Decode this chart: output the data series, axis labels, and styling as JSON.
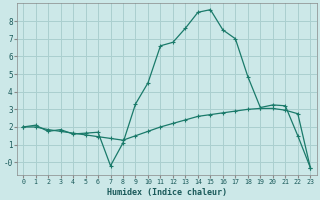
{
  "xlabel": "Humidex (Indice chaleur)",
  "bg_color": "#cce8e8",
  "grid_color": "#aacfcf",
  "line_color": "#1a7a6a",
  "x_ticks": [
    0,
    1,
    2,
    3,
    4,
    5,
    6,
    7,
    8,
    9,
    10,
    11,
    12,
    13,
    14,
    15,
    16,
    17,
    18,
    19,
    20,
    21,
    22,
    23
  ],
  "y_ticks": [
    0,
    1,
    2,
    3,
    4,
    5,
    6,
    7,
    8
  ],
  "ylim": [
    -0.7,
    9.0
  ],
  "xlim": [
    -0.5,
    23.5
  ],
  "series1_x": [
    0,
    1,
    2,
    3,
    4,
    5,
    6,
    7,
    8,
    9,
    10,
    11,
    12,
    13,
    14,
    15,
    16,
    17,
    18,
    19,
    20,
    21,
    22,
    23
  ],
  "series1_y": [
    2.0,
    2.1,
    1.75,
    1.85,
    1.6,
    1.65,
    1.7,
    -0.2,
    1.1,
    3.3,
    4.5,
    6.6,
    6.8,
    7.6,
    8.5,
    8.65,
    7.5,
    7.0,
    4.85,
    3.1,
    3.25,
    3.2,
    1.5,
    -0.3
  ],
  "series2_x": [
    0,
    1,
    2,
    3,
    4,
    5,
    6,
    7,
    8,
    9,
    10,
    11,
    12,
    13,
    14,
    15,
    16,
    17,
    18,
    19,
    20,
    21,
    22,
    23
  ],
  "series2_y": [
    2.0,
    2.0,
    1.85,
    1.75,
    1.65,
    1.55,
    1.45,
    1.35,
    1.25,
    1.5,
    1.75,
    2.0,
    2.2,
    2.4,
    2.6,
    2.7,
    2.8,
    2.9,
    3.0,
    3.05,
    3.05,
    2.95,
    2.75,
    -0.3
  ],
  "y_tick_labels": [
    "-0",
    "1",
    "2",
    "3",
    "4",
    "5",
    "6",
    "7",
    "8"
  ]
}
